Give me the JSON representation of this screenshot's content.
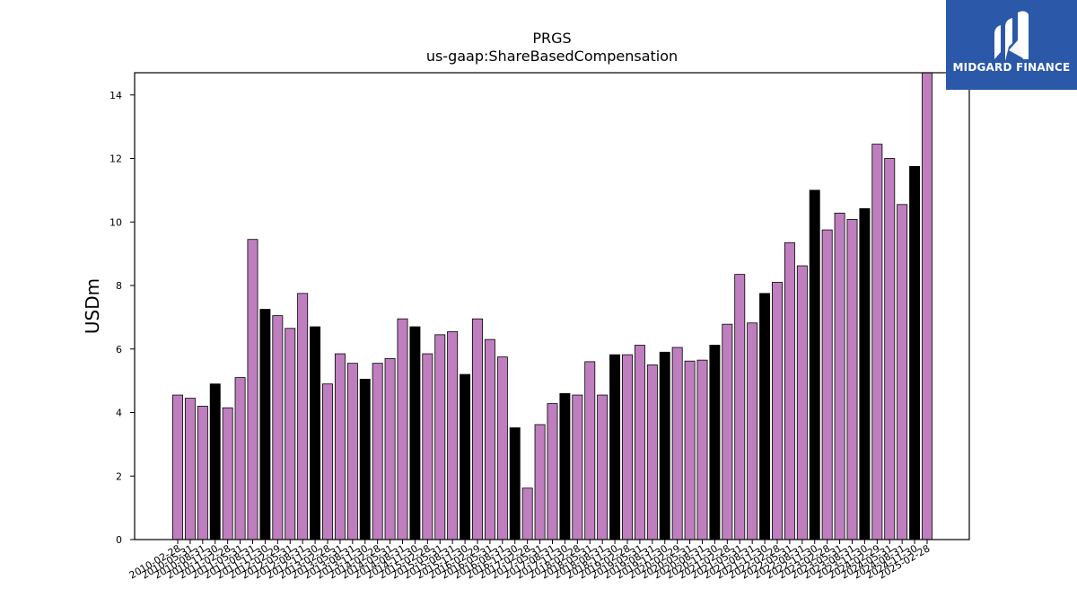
{
  "chart_data": {
    "type": "bar",
    "title": "PRGS",
    "subtitle": "us-gaap:ShareBasedCompensation",
    "xlabel": "",
    "ylabel": "USDm",
    "ylim": [
      0,
      14.7
    ],
    "yticks": [
      0,
      2,
      4,
      6,
      8,
      10,
      12,
      14
    ],
    "grid": false,
    "categories": [
      "2010-02-28",
      "2010-05-31",
      "2010-08-31",
      "2010-11-30",
      "2011-02-28",
      "2011-05-31",
      "2011-08-31",
      "2011-11-30",
      "2012-02-29",
      "2012-05-31",
      "2012-08-31",
      "2012-11-30",
      "2013-02-28",
      "2013-05-31",
      "2013-08-31",
      "2013-11-30",
      "2014-02-28",
      "2014-05-31",
      "2014-08-31",
      "2014-11-30",
      "2015-02-28",
      "2015-05-31",
      "2015-08-31",
      "2015-11-30",
      "2016-02-29",
      "2016-05-31",
      "2016-08-31",
      "2016-11-30",
      "2017-02-28",
      "2017-05-31",
      "2017-08-31",
      "2017-11-30",
      "2018-02-28",
      "2018-05-31",
      "2018-08-31",
      "2018-11-30",
      "2019-02-28",
      "2019-05-31",
      "2019-08-31",
      "2019-11-30",
      "2020-02-29",
      "2020-05-31",
      "2020-08-31",
      "2020-11-30",
      "2021-02-28",
      "2021-05-31",
      "2021-08-31",
      "2021-11-30",
      "2022-02-28",
      "2022-05-31",
      "2022-08-31",
      "2022-11-30",
      "2023-02-28",
      "2023-05-31",
      "2023-08-31",
      "2023-11-30",
      "2024-02-29",
      "2024-05-31",
      "2024-08-31",
      "2024-11-30",
      "2025-02-28"
    ],
    "values": [
      4.55,
      4.45,
      4.2,
      4.9,
      4.15,
      5.1,
      9.45,
      7.25,
      7.05,
      6.65,
      7.75,
      6.7,
      4.9,
      5.85,
      5.55,
      5.05,
      5.55,
      5.7,
      6.95,
      6.7,
      5.85,
      6.45,
      6.55,
      5.2,
      6.95,
      6.3,
      5.75,
      3.52,
      1.62,
      3.62,
      4.28,
      4.6,
      4.55,
      5.6,
      4.55,
      5.82,
      5.82,
      6.12,
      5.5,
      5.9,
      6.05,
      5.62,
      5.65,
      6.12,
      6.78,
      8.35,
      6.82,
      7.75,
      8.1,
      9.35,
      8.62,
      11.0,
      9.75,
      10.28,
      10.08,
      10.42,
      12.45,
      12.0,
      10.55,
      11.75,
      14.7
    ],
    "bar_color": "#bf7fbf",
    "highlight_color": "#000000",
    "highlight_rule": "fiscal year-end quarter (November) drawn in black"
  },
  "logo": {
    "text": "MIDGARD FINANCE",
    "bg_color": "#2b58a8"
  }
}
